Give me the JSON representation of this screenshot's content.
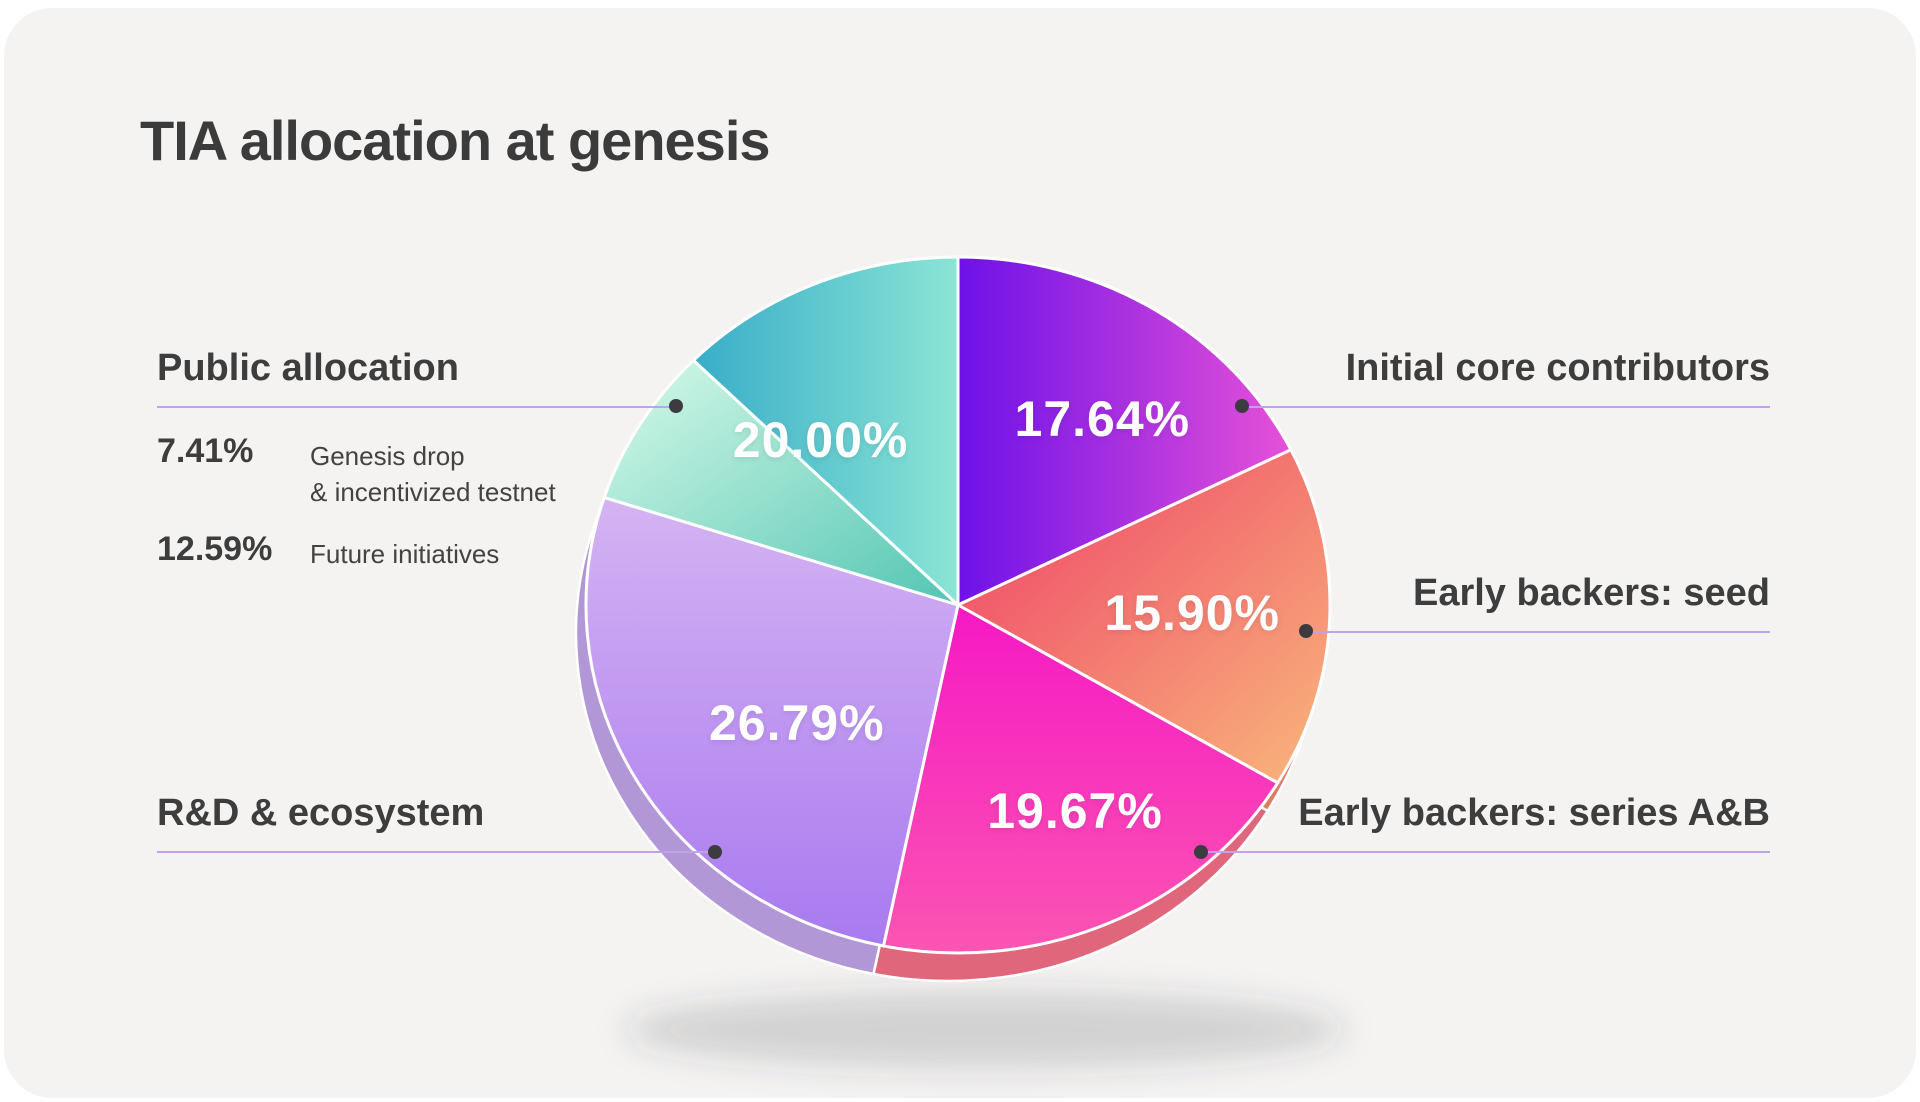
{
  "title": "TIA allocation at genesis",
  "colors": {
    "page_bg": "#ffffff",
    "card_bg": "#f4f3f1",
    "text_dark": "#3b3b3b",
    "connector_line": "#bfa2ec",
    "dot": "#3b3b40",
    "pct_text": "#ffffff"
  },
  "callouts": {
    "public": {
      "title": "Public allocation",
      "rows": [
        {
          "pct": "7.41%",
          "lines": [
            "Genesis drop",
            "& incentivized testnet"
          ]
        },
        {
          "pct": "12.59%",
          "lines": [
            "Future initiatives"
          ]
        }
      ]
    },
    "initial": {
      "title": "Initial core contributors"
    },
    "seed": {
      "title": "Early backers: seed"
    },
    "seriesab": {
      "title": "Early backers: series A&B"
    },
    "rnd": {
      "title": "R&D & ecosystem"
    }
  },
  "chart_data": {
    "type": "pie",
    "title": "TIA allocation at genesis",
    "start_angle_deg": 0,
    "direction": "clockwise",
    "slices": [
      {
        "id": "initial",
        "label": "Initial core contributors",
        "value": 17.64,
        "display": "17.64%",
        "color_from": "#6d11e8",
        "color_to": "#e651d8",
        "depth_color": "#5b0fc2",
        "grad_dir": "lr"
      },
      {
        "id": "seed",
        "label": "Early backers: seed",
        "value": 15.9,
        "display": "15.90%",
        "color_from": "#ee3e66",
        "color_to": "#f9b77c",
        "depth_color": "#de7b60",
        "grad_dir": "tlbr"
      },
      {
        "id": "seriesab",
        "label": "Early backers: series A&B",
        "value": 19.67,
        "display": "19.67%",
        "color_from": "#f619c4",
        "color_to": "#fb55b2",
        "depth_color": "#e0677b",
        "grad_dir": "tb"
      },
      {
        "id": "rnd",
        "label": "R&D & ecosystem",
        "value": 26.79,
        "display": "26.79%",
        "color_from": "#d5b3f2",
        "color_to": "#a87af0",
        "depth_color": "#b297d6",
        "grad_dir": "tb"
      },
      {
        "id": "genesis",
        "label": "Genesis drop & incentivized testnet",
        "value": 7.41,
        "display": "7.41%",
        "color_from": "#d8fae9",
        "color_to": "#53c5b3",
        "depth_color": "#2fa077",
        "grad_dir": "tlbr"
      },
      {
        "id": "future",
        "label": "Future initiatives",
        "value": 12.59,
        "display": "12.59%",
        "color_from": "#38adc8",
        "color_to": "#8be5d5",
        "depth_color": "#2e96ad",
        "grad_dir": "lr"
      }
    ],
    "on_pie_labels": [
      {
        "slice": "initial",
        "text": "17.64%"
      },
      {
        "slice": "seed",
        "text": "15.90%"
      },
      {
        "slice": "seriesab",
        "text": "19.67%"
      },
      {
        "slice": "rnd",
        "text": "26.79%"
      },
      {
        "slice": "public",
        "text": "20.00%"
      }
    ],
    "legend_position": "sides",
    "grid": false
  }
}
